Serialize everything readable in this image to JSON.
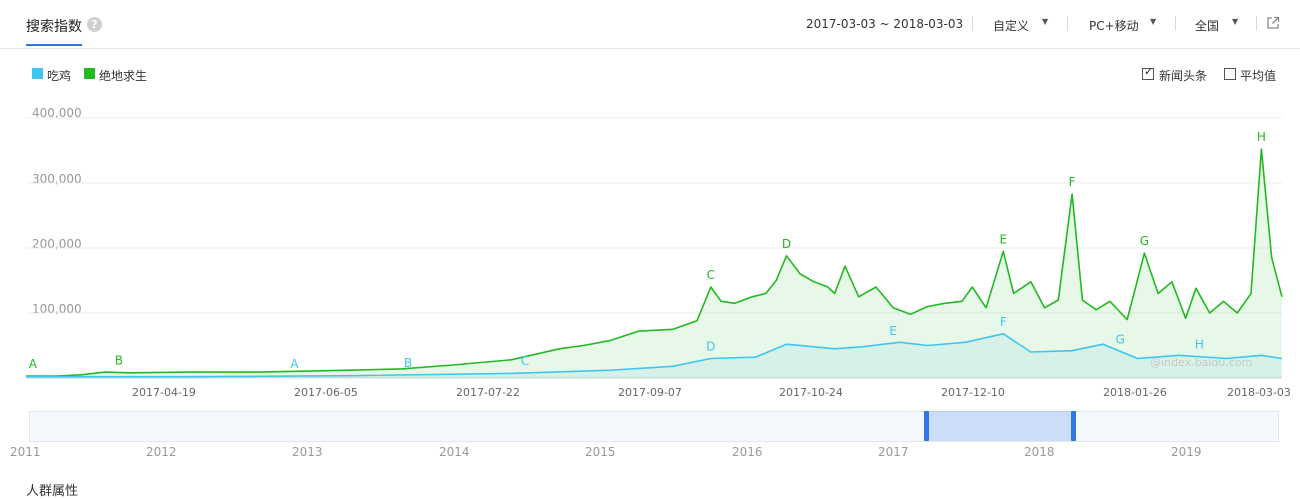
{
  "header": {
    "tab_label": "搜索指数",
    "help_icon": "?",
    "date_range": "2017-03-03 ~ 2018-03-03",
    "period_label": "自定义",
    "device_label": "PC+移动",
    "region_label": "全国",
    "export_icon": "external-link-icon",
    "accent_color": "#2f77e3"
  },
  "legend": [
    {
      "label": "吃鸡",
      "color": "#3ec6f0"
    },
    {
      "label": "绝地求生",
      "color": "#22b922"
    }
  ],
  "options": {
    "news_label": "新闻头条",
    "news_checked": true,
    "avg_label": "平均值",
    "avg_checked": false
  },
  "watermark": "@index.baidu.com",
  "chart_data": {
    "type": "line",
    "ylim": [
      0,
      400000
    ],
    "y_ticks": [
      "400,000",
      "300,000",
      "200,000",
      "100,000"
    ],
    "x_tick_labels": [
      "2017-04-19",
      "2017-06-05",
      "2017-07-22",
      "2017-09-07",
      "2017-10-24",
      "2017-12-10",
      "2018-01-26",
      "2018-03-03"
    ],
    "grid": true,
    "series": [
      {
        "name": "绝地求生",
        "color": "#22b922",
        "points": [
          [
            "2017-03-03",
            3000
          ],
          [
            "2017-03-12",
            3000
          ],
          [
            "2017-03-19",
            5000
          ],
          [
            "2017-03-26",
            9000
          ],
          [
            "2017-04-02",
            8000
          ],
          [
            "2017-04-19",
            9000
          ],
          [
            "2017-05-10",
            9000
          ],
          [
            "2017-06-05",
            12000
          ],
          [
            "2017-06-20",
            14000
          ],
          [
            "2017-07-05",
            20000
          ],
          [
            "2017-07-22",
            28000
          ],
          [
            "2017-08-05",
            45000
          ],
          [
            "2017-08-12",
            50000
          ],
          [
            "2017-08-20",
            58000
          ],
          [
            "2017-08-28",
            72000
          ],
          [
            "2017-09-07",
            75000
          ],
          [
            "2017-09-14",
            88000
          ],
          [
            "2017-09-18",
            140000
          ],
          [
            "2017-09-21",
            118000
          ],
          [
            "2017-09-25",
            115000
          ],
          [
            "2017-09-30",
            125000
          ],
          [
            "2017-10-04",
            130000
          ],
          [
            "2017-10-07",
            150000
          ],
          [
            "2017-10-10",
            188000
          ],
          [
            "2017-10-14",
            160000
          ],
          [
            "2017-10-18",
            148000
          ],
          [
            "2017-10-22",
            140000
          ],
          [
            "2017-10-24",
            130000
          ],
          [
            "2017-10-27",
            172000
          ],
          [
            "2017-10-31",
            125000
          ],
          [
            "2017-11-05",
            140000
          ],
          [
            "2017-11-10",
            108000
          ],
          [
            "2017-11-15",
            98000
          ],
          [
            "2017-11-20",
            110000
          ],
          [
            "2017-11-25",
            115000
          ],
          [
            "2017-11-30",
            118000
          ],
          [
            "2017-12-03",
            140000
          ],
          [
            "2017-12-07",
            108000
          ],
          [
            "2017-12-12",
            195000
          ],
          [
            "2017-12-15",
            130000
          ],
          [
            "2017-12-20",
            148000
          ],
          [
            "2017-12-24",
            108000
          ],
          [
            "2017-12-28",
            120000
          ],
          [
            "2018-01-01",
            283000
          ],
          [
            "2018-01-04",
            120000
          ],
          [
            "2018-01-08",
            105000
          ],
          [
            "2018-01-12",
            118000
          ],
          [
            "2018-01-17",
            90000
          ],
          [
            "2018-01-22",
            192000
          ],
          [
            "2018-01-26",
            130000
          ],
          [
            "2018-01-30",
            148000
          ],
          [
            "2018-02-03",
            92000
          ],
          [
            "2018-02-06",
            138000
          ],
          [
            "2018-02-10",
            100000
          ],
          [
            "2018-02-14",
            118000
          ],
          [
            "2018-02-18",
            100000
          ],
          [
            "2018-02-22",
            130000
          ],
          [
            "2018-02-25",
            352000
          ],
          [
            "2018-02-28",
            185000
          ],
          [
            "2018-03-03",
            125000
          ]
        ]
      },
      {
        "name": "吃鸡",
        "color": "#3ec6f0",
        "points": [
          [
            "2017-03-03",
            2000
          ],
          [
            "2017-04-19",
            2000
          ],
          [
            "2017-06-05",
            3500
          ],
          [
            "2017-07-22",
            7000
          ],
          [
            "2017-08-20",
            12000
          ],
          [
            "2017-09-07",
            18000
          ],
          [
            "2017-09-18",
            30000
          ],
          [
            "2017-10-01",
            32000
          ],
          [
            "2017-10-10",
            52000
          ],
          [
            "2017-10-24",
            45000
          ],
          [
            "2017-11-01",
            48000
          ],
          [
            "2017-11-12",
            55000
          ],
          [
            "2017-11-20",
            50000
          ],
          [
            "2017-12-01",
            55000
          ],
          [
            "2017-12-12",
            68000
          ],
          [
            "2017-12-20",
            40000
          ],
          [
            "2018-01-01",
            42000
          ],
          [
            "2018-01-10",
            52000
          ],
          [
            "2018-01-20",
            30000
          ],
          [
            "2018-02-01",
            35000
          ],
          [
            "2018-02-15",
            30000
          ],
          [
            "2018-02-25",
            35000
          ],
          [
            "2018-03-03",
            30000
          ]
        ]
      }
    ],
    "annotations": [
      {
        "series": "绝地求生",
        "label": "A",
        "date": "2017-03-05"
      },
      {
        "series": "绝地求生",
        "label": "B",
        "date": "2017-03-30"
      },
      {
        "series": "绝地求生",
        "label": "C",
        "date": "2017-09-18"
      },
      {
        "series": "绝地求生",
        "label": "D",
        "date": "2017-10-10"
      },
      {
        "series": "绝地求生",
        "label": "E",
        "date": "2017-12-12"
      },
      {
        "series": "绝地求生",
        "label": "F",
        "date": "2018-01-01"
      },
      {
        "series": "绝地求生",
        "label": "G",
        "date": "2018-01-22"
      },
      {
        "series": "绝地求生",
        "label": "H",
        "date": "2018-02-25"
      },
      {
        "series": "吃鸡",
        "label": "A",
        "date": "2017-05-20"
      },
      {
        "series": "吃鸡",
        "label": "B",
        "date": "2017-06-22"
      },
      {
        "series": "吃鸡",
        "label": "C",
        "date": "2017-07-26"
      },
      {
        "series": "吃鸡",
        "label": "D",
        "date": "2017-09-18"
      },
      {
        "series": "吃鸡",
        "label": "E",
        "date": "2017-11-10"
      },
      {
        "series": "吃鸡",
        "label": "F",
        "date": "2017-12-12"
      },
      {
        "series": "吃鸡",
        "label": "G",
        "date": "2018-01-15"
      },
      {
        "series": "吃鸡",
        "label": "H",
        "date": "2018-02-07"
      }
    ]
  },
  "range_slider": {
    "years": [
      "2011",
      "2012",
      "2013",
      "2014",
      "2015",
      "2016",
      "2017",
      "2018",
      "2019"
    ],
    "selection_start": "2017-03-03",
    "selection_end": "2018-03-03"
  },
  "next_section_title": "人群属性"
}
